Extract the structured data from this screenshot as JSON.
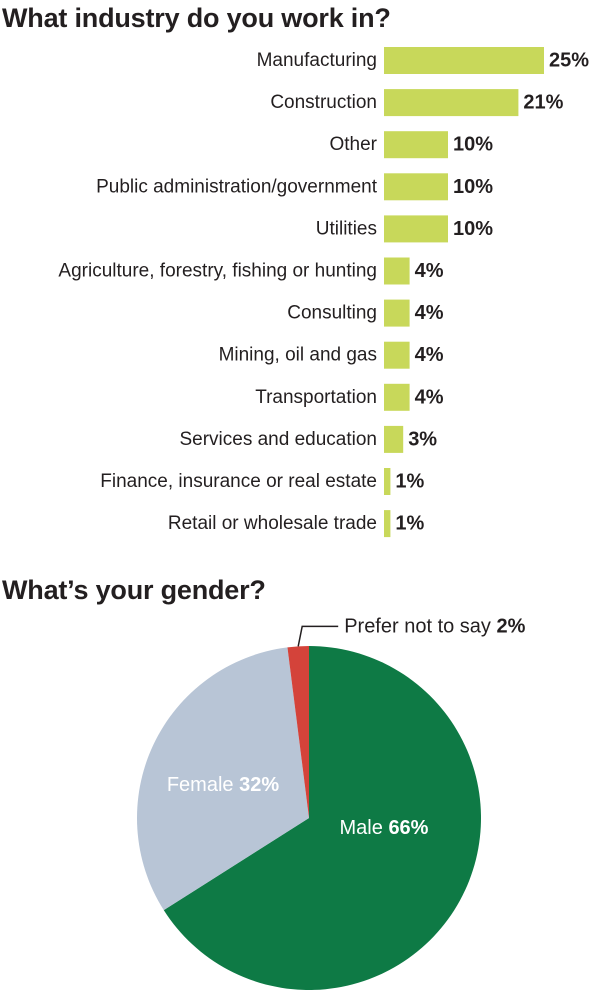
{
  "industry_title": "What industry do you work in?",
  "gender_title": "What’s your gender?",
  "colors": {
    "bar": "#c8d85a",
    "male": "#0e7a45",
    "female": "#b8c5d6",
    "prefer_not": "#d4433a",
    "text": "#231f20"
  },
  "chart_data": [
    {
      "type": "bar",
      "orientation": "horizontal",
      "title": "What industry do you work in?",
      "categories": [
        "Manufacturing",
        "Construction",
        "Other",
        "Public administration/government",
        "Utilities",
        "Agriculture, forestry, fishing or hunting",
        "Consulting",
        "Mining, oil and gas",
        "Transportation",
        "Services and education",
        "Finance, insurance or real estate",
        "Retail or wholesale trade"
      ],
      "values": [
        25,
        21,
        10,
        10,
        10,
        4,
        4,
        4,
        4,
        3,
        1,
        1
      ],
      "value_labels": [
        "25%",
        "21%",
        "10%",
        "10%",
        "10%",
        "4%",
        "4%",
        "4%",
        "4%",
        "3%",
        "1%",
        "1%"
      ],
      "unit": "%",
      "grid": false
    },
    {
      "type": "pie",
      "title": "What’s your gender?",
      "slices": [
        {
          "name": "Male",
          "value": 66,
          "value_label": "66%",
          "color": "#0e7a45"
        },
        {
          "name": "Female",
          "value": 32,
          "value_label": "32%",
          "color": "#b8c5d6"
        },
        {
          "name": "Prefer not to say",
          "value": 2,
          "value_label": "2%",
          "color": "#d4433a"
        }
      ]
    }
  ]
}
